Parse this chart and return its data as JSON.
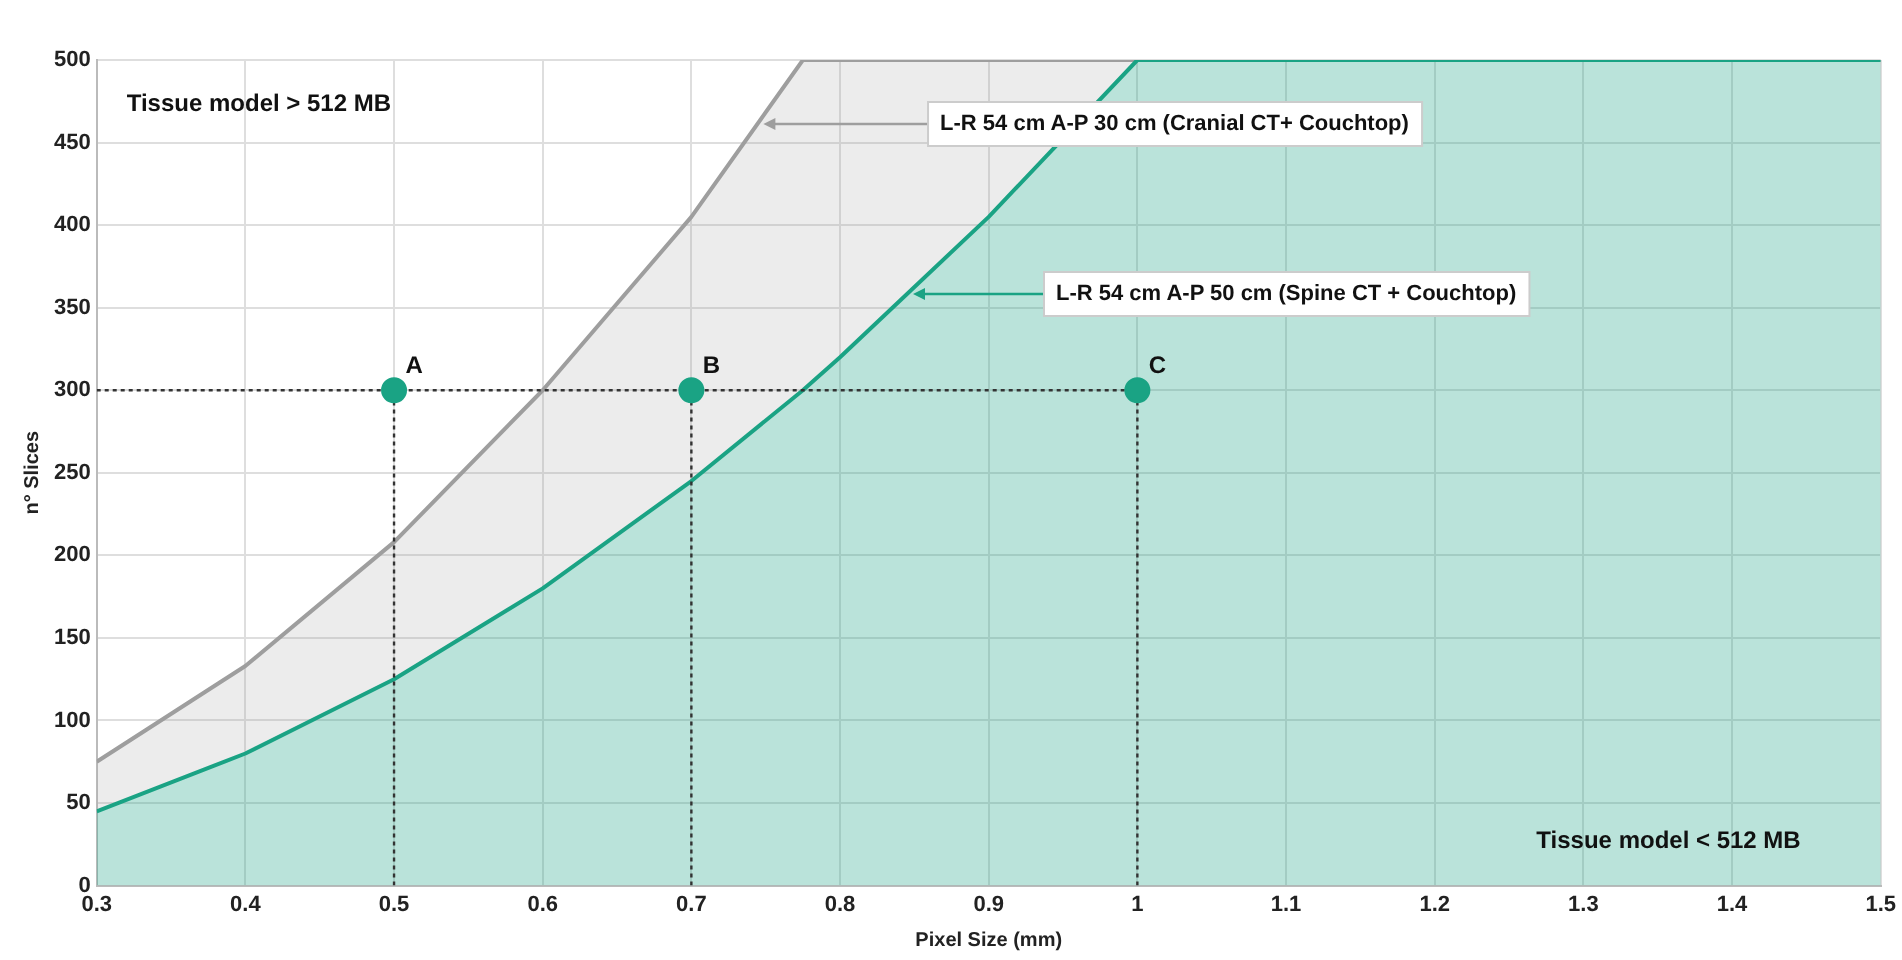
{
  "chart_data": {
    "type": "area",
    "xlabel": "Pixel Size (mm)",
    "ylabel": "n° Slices",
    "xlim": [
      0.3,
      1.5
    ],
    "xticks": [
      0.3,
      0.4,
      0.5,
      0.6,
      0.7,
      0.8,
      0.9,
      1,
      1.1,
      1.2,
      1.3,
      1.4,
      1.5
    ],
    "ylim": [
      0,
      500
    ],
    "yticks": [
      0,
      50,
      100,
      150,
      200,
      250,
      300,
      350,
      400,
      450,
      500
    ],
    "grid": true,
    "legend": false,
    "series": [
      {
        "name": "L-R 54 cm A-P 30 cm (Cranial CT+ Couchtop)",
        "color": "#9e9e9e",
        "x": [
          0.3,
          0.4,
          0.5,
          0.6,
          0.7,
          0.775,
          0.8,
          0.9,
          1,
          1.5
        ],
        "values": [
          75,
          133,
          208,
          300,
          405,
          500,
          500,
          500,
          500,
          500
        ]
      },
      {
        "name": "L-R 54 cm A-P 50 cm (Spine CT + Couchtop)",
        "color": "#1aa384",
        "x": [
          0.3,
          0.4,
          0.5,
          0.6,
          0.7,
          0.775,
          0.8,
          0.9,
          1,
          1.5
        ],
        "values": [
          45,
          80,
          125,
          180,
          245,
          300,
          320,
          405,
          500,
          500
        ]
      },
      {
        "type": "line",
        "line_style": "dotted",
        "color": "#333333",
        "x": [
          0.3,
          1
        ],
        "values": [
          300,
          300
        ]
      },
      {
        "type": "line",
        "line_style": "dotted",
        "color": "#333333",
        "x": [
          0.5,
          0.5
        ],
        "values": [
          0,
          300
        ]
      },
      {
        "type": "line",
        "line_style": "dotted",
        "color": "#333333",
        "x": [
          0.7,
          0.7
        ],
        "values": [
          0,
          300
        ]
      },
      {
        "type": "line",
        "line_style": "dotted",
        "color": "#333333",
        "x": [
          1,
          1
        ],
        "values": [
          0,
          300
        ]
      },
      {
        "type": "scatter",
        "marker": "circle",
        "color": "#1aa384",
        "x": [
          0.5,
          0.7,
          1
        ],
        "values": [
          300,
          300,
          300
        ]
      }
    ],
    "annotations": [
      "Tissue model > 512 MB",
      "Tissue model < 512 MB",
      {
        "text": "A",
        "x": 0.5,
        "y": 300
      },
      {
        "text": "B",
        "x": 0.7,
        "y": 300
      },
      {
        "text": "C",
        "x": 1,
        "y": 300
      }
    ]
  }
}
